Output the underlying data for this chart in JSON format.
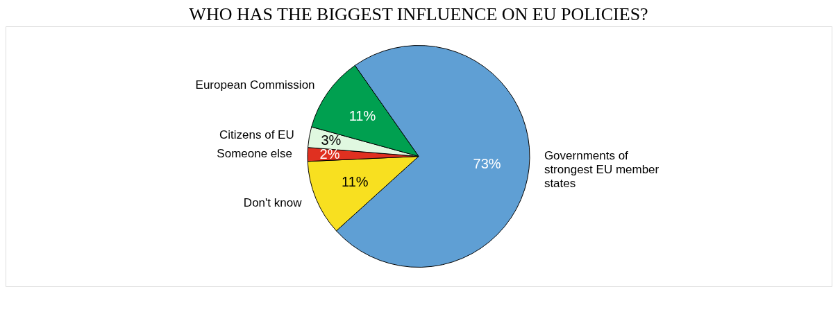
{
  "chart_data": {
    "type": "pie",
    "title": "WHO HAS THE BIGGEST INFLUENCE ON EU POLICIES?",
    "categories": [
      "Governments of strongest EU member states",
      "Don't know",
      "Someone else",
      "Citizens of EU",
      "European Commission"
    ],
    "values": [
      73,
      11,
      2,
      3,
      11
    ],
    "value_labels": [
      "73%",
      "11%",
      "2%",
      "3%",
      "11%"
    ],
    "colors": [
      "#5f9fd4",
      "#f8e020",
      "#e03020",
      "#e0f8e0",
      "#00a050"
    ],
    "legend": false
  }
}
